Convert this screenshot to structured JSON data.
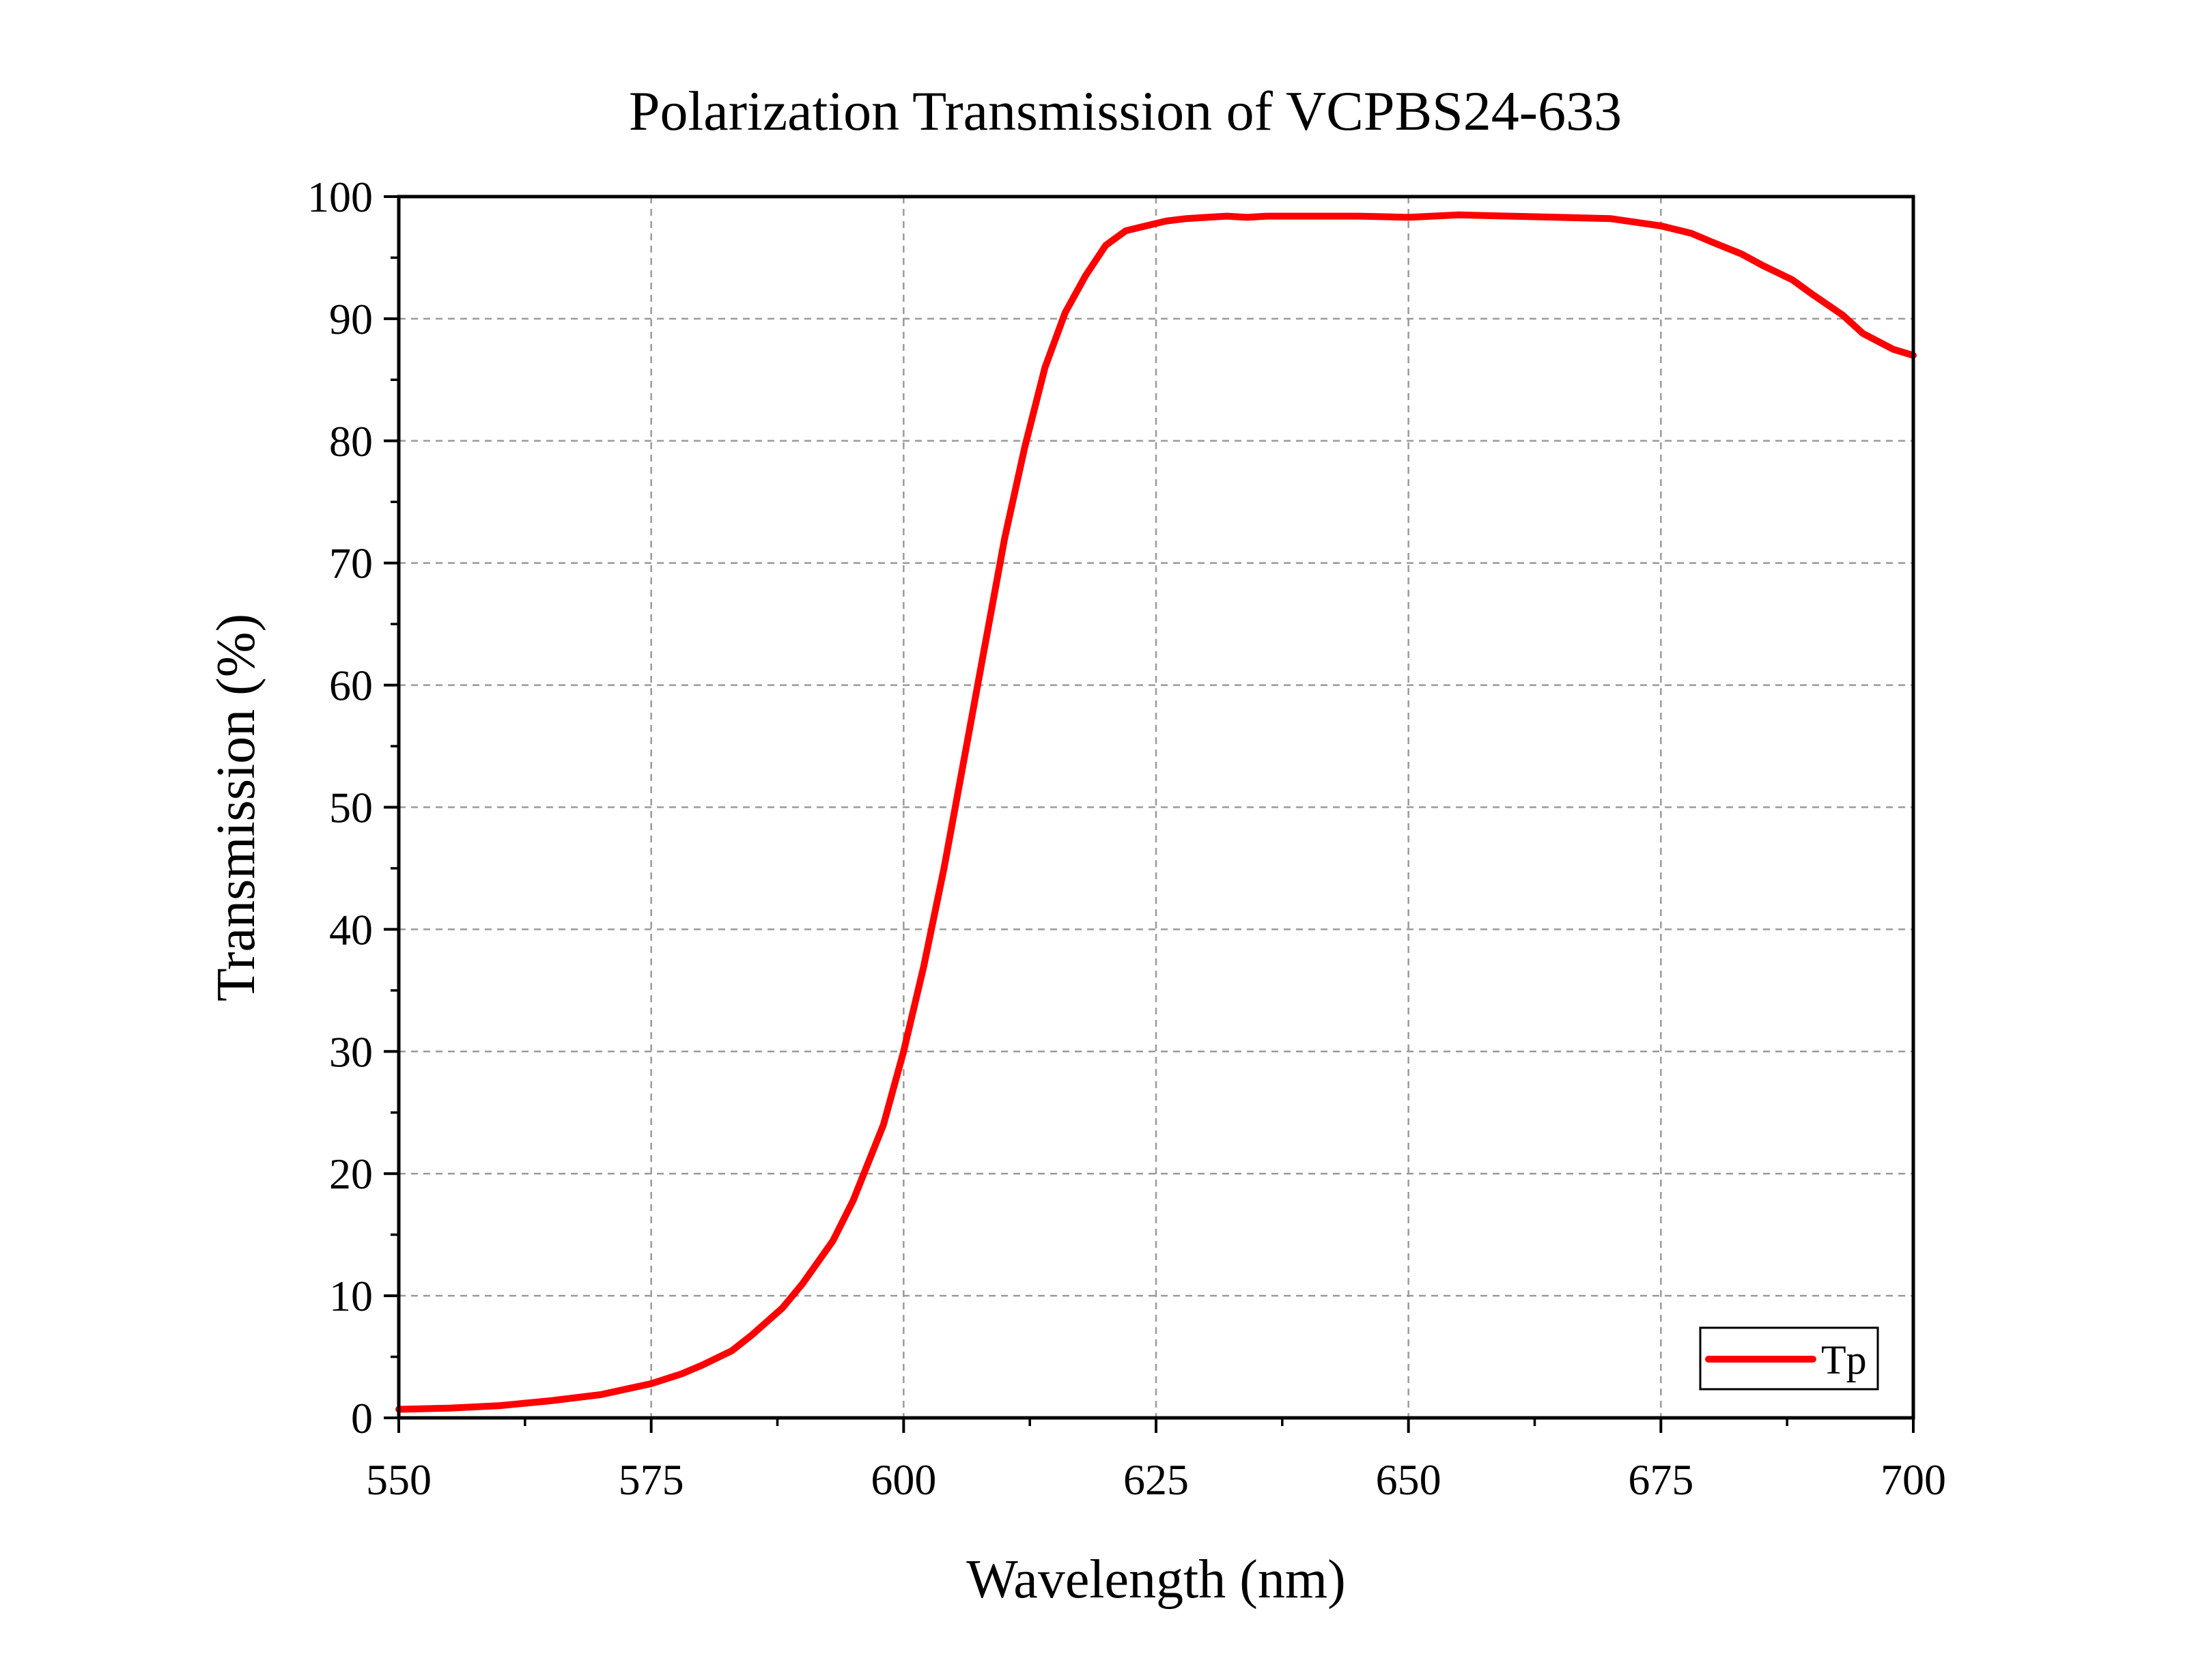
{
  "chart_data": {
    "type": "line",
    "title": "Polarization Transmission of VCPBS24-633",
    "xlabel": "Wavelength (nm)",
    "ylabel": "Transmission (%)",
    "xlim": [
      550,
      700
    ],
    "ylim": [
      0,
      100
    ],
    "x_ticks": [
      550,
      575,
      600,
      625,
      650,
      675,
      700
    ],
    "y_ticks": [
      0,
      10,
      20,
      30,
      40,
      50,
      60,
      70,
      80,
      90,
      100
    ],
    "x_tick_labels": [
      "550",
      "575",
      "600",
      "625",
      "650",
      "675",
      "700"
    ],
    "y_tick_labels": [
      "0",
      "10",
      "20",
      "30",
      "40",
      "50",
      "60",
      "70",
      "80",
      "90",
      "100"
    ],
    "grid": true,
    "legend_position": "bottom-right",
    "series": [
      {
        "name": "Tp",
        "color": "#ff0000",
        "x": [
          550,
          555,
          560,
          565,
          570,
          575,
          578,
          580,
          583,
          585,
          588,
          590,
          593,
          595,
          598,
          600,
          602,
          604,
          606,
          608,
          610,
          612,
          614,
          616,
          618,
          620,
          622,
          624,
          626,
          628,
          630,
          632,
          634,
          636,
          640,
          645,
          650,
          655,
          660,
          665,
          670,
          675,
          678,
          680,
          683,
          685,
          688,
          690,
          693,
          695,
          698,
          700
        ],
        "y": [
          0.7,
          0.8,
          1.0,
          1.4,
          1.9,
          2.8,
          3.6,
          4.3,
          5.5,
          6.8,
          9.0,
          11.0,
          14.5,
          17.8,
          24.0,
          30.0,
          37.0,
          45.0,
          54.0,
          63.0,
          72.0,
          79.5,
          86.0,
          90.5,
          93.5,
          96.0,
          97.2,
          97.6,
          98.0,
          98.2,
          98.3,
          98.4,
          98.3,
          98.4,
          98.4,
          98.4,
          98.3,
          98.5,
          98.4,
          98.3,
          98.2,
          97.6,
          97.0,
          96.3,
          95.3,
          94.4,
          93.2,
          92.0,
          90.3,
          88.8,
          87.5,
          87.0
        ]
      }
    ]
  }
}
